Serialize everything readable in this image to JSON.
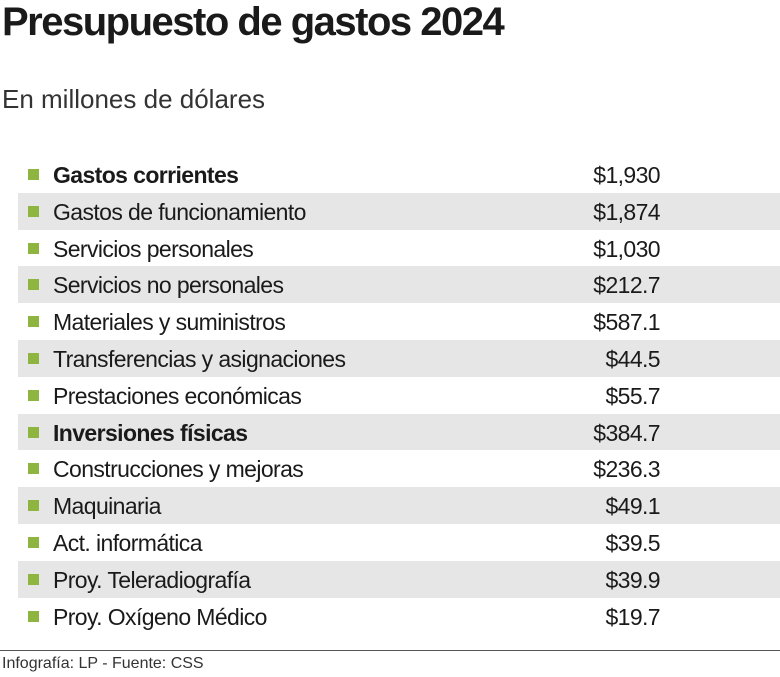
{
  "header": {
    "title": "Presupuesto de gastos 2024",
    "subtitle": "En millones de dólares"
  },
  "table": {
    "rows": [
      {
        "label": "Gastos corrientes",
        "value": "$1,930",
        "bold": true
      },
      {
        "label": "Gastos de funcionamiento",
        "value": "$1,874"
      },
      {
        "label": "Servicios personales",
        "value": "$1,030"
      },
      {
        "label": "Servicios no personales",
        "value": "$212.7"
      },
      {
        "label": "Materiales y suministros",
        "value": "$587.1"
      },
      {
        "label": "Transferencias y asignaciones",
        "value": "$44.5"
      },
      {
        "label": "Prestaciones económicas",
        "value": "$55.7"
      },
      {
        "label": "Inversiones físicas",
        "value": "$384.7",
        "bold": true
      },
      {
        "label": "Construcciones y mejoras",
        "value": "$236.3"
      },
      {
        "label": "Maquinaria",
        "value": "$49.1"
      },
      {
        "label": "Act. informática",
        "value": "$39.5"
      },
      {
        "label": "Proy. Teleradiografía",
        "value": "$39.9"
      },
      {
        "label": "Proy. Oxígeno Médico",
        "value": "$19.7"
      }
    ]
  },
  "footer": {
    "source": "Infografía: LP - Fuente: CSS"
  }
}
